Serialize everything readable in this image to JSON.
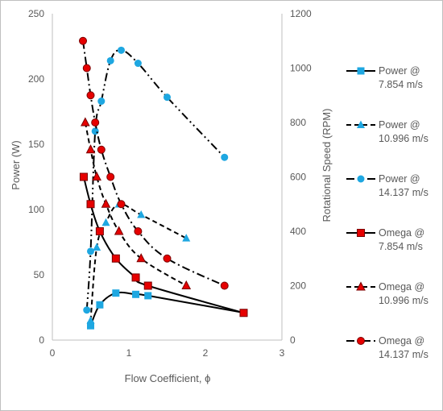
{
  "chart_data": {
    "type": "line",
    "title": "",
    "xlabel": "Flow Coefficient, ϕ",
    "ylabel": "Power (W)",
    "y2label": "Rotational Speed (RPM)",
    "xlim": [
      0,
      3
    ],
    "ylim": [
      0,
      250
    ],
    "y2lim": [
      0,
      1200
    ],
    "xticks": [
      "0",
      "1",
      "2",
      "3"
    ],
    "yticks": [
      "0",
      "50",
      "100",
      "150",
      "200",
      "250"
    ],
    "y2ticks": [
      "0",
      "200",
      "400",
      "600",
      "800",
      "1000",
      "1200"
    ],
    "grid": false,
    "legend_position": "right",
    "series": [
      {
        "name_lines": [
          "Power @",
          "7.854 m/s"
        ],
        "axis": "left",
        "marker": "square",
        "color": "#1ea7e1",
        "dash": "solid",
        "x": [
          0.5,
          0.62,
          0.83,
          1.09,
          1.25,
          2.5
        ],
        "y": [
          11,
          27,
          36,
          35,
          34,
          21
        ]
      },
      {
        "name_lines": [
          "Power @",
          "10.996 m/s"
        ],
        "axis": "left",
        "marker": "triangle",
        "color": "#1ea7e1",
        "dash": "dashed",
        "x": [
          0.5,
          0.58,
          0.7,
          0.87,
          1.16,
          1.75
        ],
        "y": [
          15,
          71,
          90,
          104,
          96,
          78
        ]
      },
      {
        "name_lines": [
          "Power @",
          "14.137 m/s"
        ],
        "axis": "left",
        "marker": "circle",
        "color": "#1ea7e1",
        "dash": "dashdotdot",
        "x": [
          0.45,
          0.5,
          0.56,
          0.64,
          0.76,
          0.9,
          1.12,
          1.5,
          2.25
        ],
        "y": [
          23,
          68,
          160,
          183,
          214,
          222,
          212,
          186,
          140
        ]
      },
      {
        "name_lines": [
          "Omega @",
          "7.854 m/s"
        ],
        "axis": "right",
        "marker": "square",
        "color": "#e60000",
        "dash": "solid",
        "x": [
          0.41,
          0.5,
          0.62,
          0.83,
          1.09,
          1.25,
          2.5
        ],
        "y": [
          600,
          500,
          400,
          300,
          230,
          200,
          100
        ]
      },
      {
        "name_lines": [
          "Omega @",
          "10.996 m/s"
        ],
        "axis": "right",
        "marker": "triangle",
        "color": "#e60000",
        "dash": "dashed",
        "x": [
          0.43,
          0.5,
          0.58,
          0.7,
          0.87,
          1.16,
          1.75
        ],
        "y": [
          800,
          700,
          600,
          500,
          400,
          300,
          200
        ]
      },
      {
        "name_lines": [
          "Omega @",
          "14.137 m/s"
        ],
        "axis": "right",
        "marker": "circle",
        "color": "#e60000",
        "dash": "dashdot",
        "x": [
          0.4,
          0.45,
          0.5,
          0.56,
          0.64,
          0.76,
          0.9,
          1.12,
          1.5,
          2.25
        ],
        "y": [
          1100,
          1000,
          900,
          800,
          700,
          600,
          500,
          400,
          300,
          200
        ]
      }
    ]
  }
}
